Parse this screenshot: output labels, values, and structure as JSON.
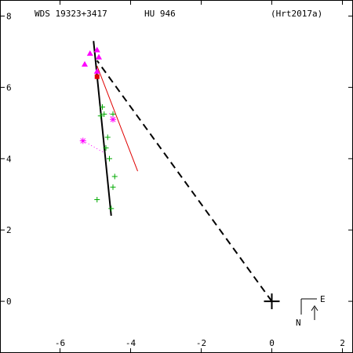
{
  "header": {
    "wds": "WDS 19323+3417",
    "disc": "HU  946",
    "ref": "(Hrt2017a)"
  },
  "compass": {
    "east": "E",
    "north": "N"
  },
  "chart_data": {
    "type": "scatter",
    "title": "",
    "xlabel": "",
    "ylabel": "",
    "xlim": [
      -7.7,
      2.3
    ],
    "ylim": [
      -1.45,
      8.45
    ],
    "x_ticks": [
      -6,
      -4,
      -2,
      0,
      2
    ],
    "y_ticks": [
      8,
      6,
      4,
      2,
      0
    ],
    "primary": [
      0,
      0
    ],
    "orbit_segment": [
      [
        -5.05,
        7.3
      ],
      [
        -4.55,
        2.4
      ]
    ],
    "connector_dashed": [
      [
        0,
        0
      ],
      [
        -4.95,
        6.75
      ]
    ],
    "ephemeris_line": [
      [
        -4.95,
        6.6
      ],
      [
        -3.8,
        3.65
      ]
    ],
    "micrometric": [
      [
        -4.8,
        5.45
      ],
      [
        -4.75,
        5.25
      ],
      [
        -4.85,
        5.2
      ],
      [
        -4.5,
        5.25
      ],
      [
        -4.65,
        4.6
      ],
      [
        -4.7,
        4.3
      ],
      [
        -4.6,
        4.0
      ],
      [
        -4.45,
        3.5
      ],
      [
        -4.5,
        3.2
      ],
      [
        -4.95,
        2.85
      ],
      [
        -4.55,
        2.6
      ]
    ],
    "speckle": [
      [
        -4.95,
        6.3
      ]
    ],
    "interferometric_triangles": [
      [
        -5.15,
        6.95
      ],
      [
        -4.95,
        7.05
      ],
      [
        -4.9,
        6.85
      ],
      [
        -5.3,
        6.65
      ],
      [
        -4.95,
        6.45
      ]
    ],
    "asterisk_points": [
      [
        -5.35,
        4.5
      ],
      [
        -4.5,
        5.1
      ]
    ],
    "residual_segments": [
      [
        [
          -5.35,
          4.5
        ],
        [
          -4.72,
          4.15
        ]
      ],
      [
        [
          -4.5,
          5.1
        ],
        [
          -4.62,
          5.3
        ]
      ]
    ],
    "colors": {
      "axes": "#000000",
      "orbit": "#000000",
      "ephemeris": "#e00000",
      "micrometric": "#00aa00",
      "interferometric": "#ff00ff",
      "speckle": "#e00000"
    }
  }
}
